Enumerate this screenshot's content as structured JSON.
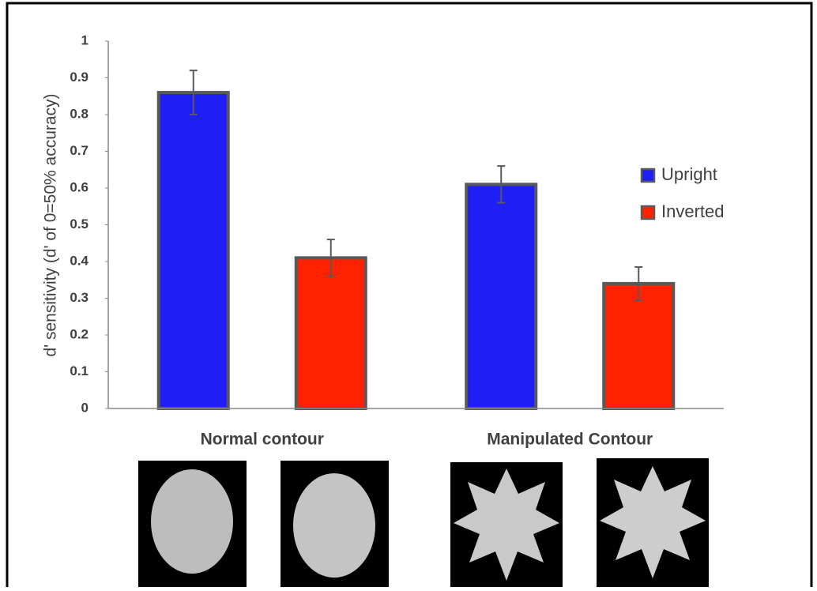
{
  "chart_data": {
    "type": "bar",
    "y_label": "d' sensitivity (d' of 0=50% accuracy)",
    "categories": [
      "Normal contour",
      "Manipulated Contour"
    ],
    "series": [
      {
        "name": "Upright",
        "color": "#1f1ff5",
        "values": [
          0.86,
          0.61
        ],
        "errors": [
          0.06,
          0.05
        ]
      },
      {
        "name": "Inverted",
        "color": "#ff2200",
        "values": [
          0.41,
          0.34
        ],
        "errors": [
          0.05,
          0.045
        ]
      }
    ],
    "ylim": [
      0,
      1
    ],
    "yticks": [
      0,
      0.1,
      0.2,
      0.3,
      0.4,
      0.5,
      0.6,
      0.7,
      0.8,
      0.9,
      1
    ],
    "grid": false,
    "legend": "right"
  }
}
